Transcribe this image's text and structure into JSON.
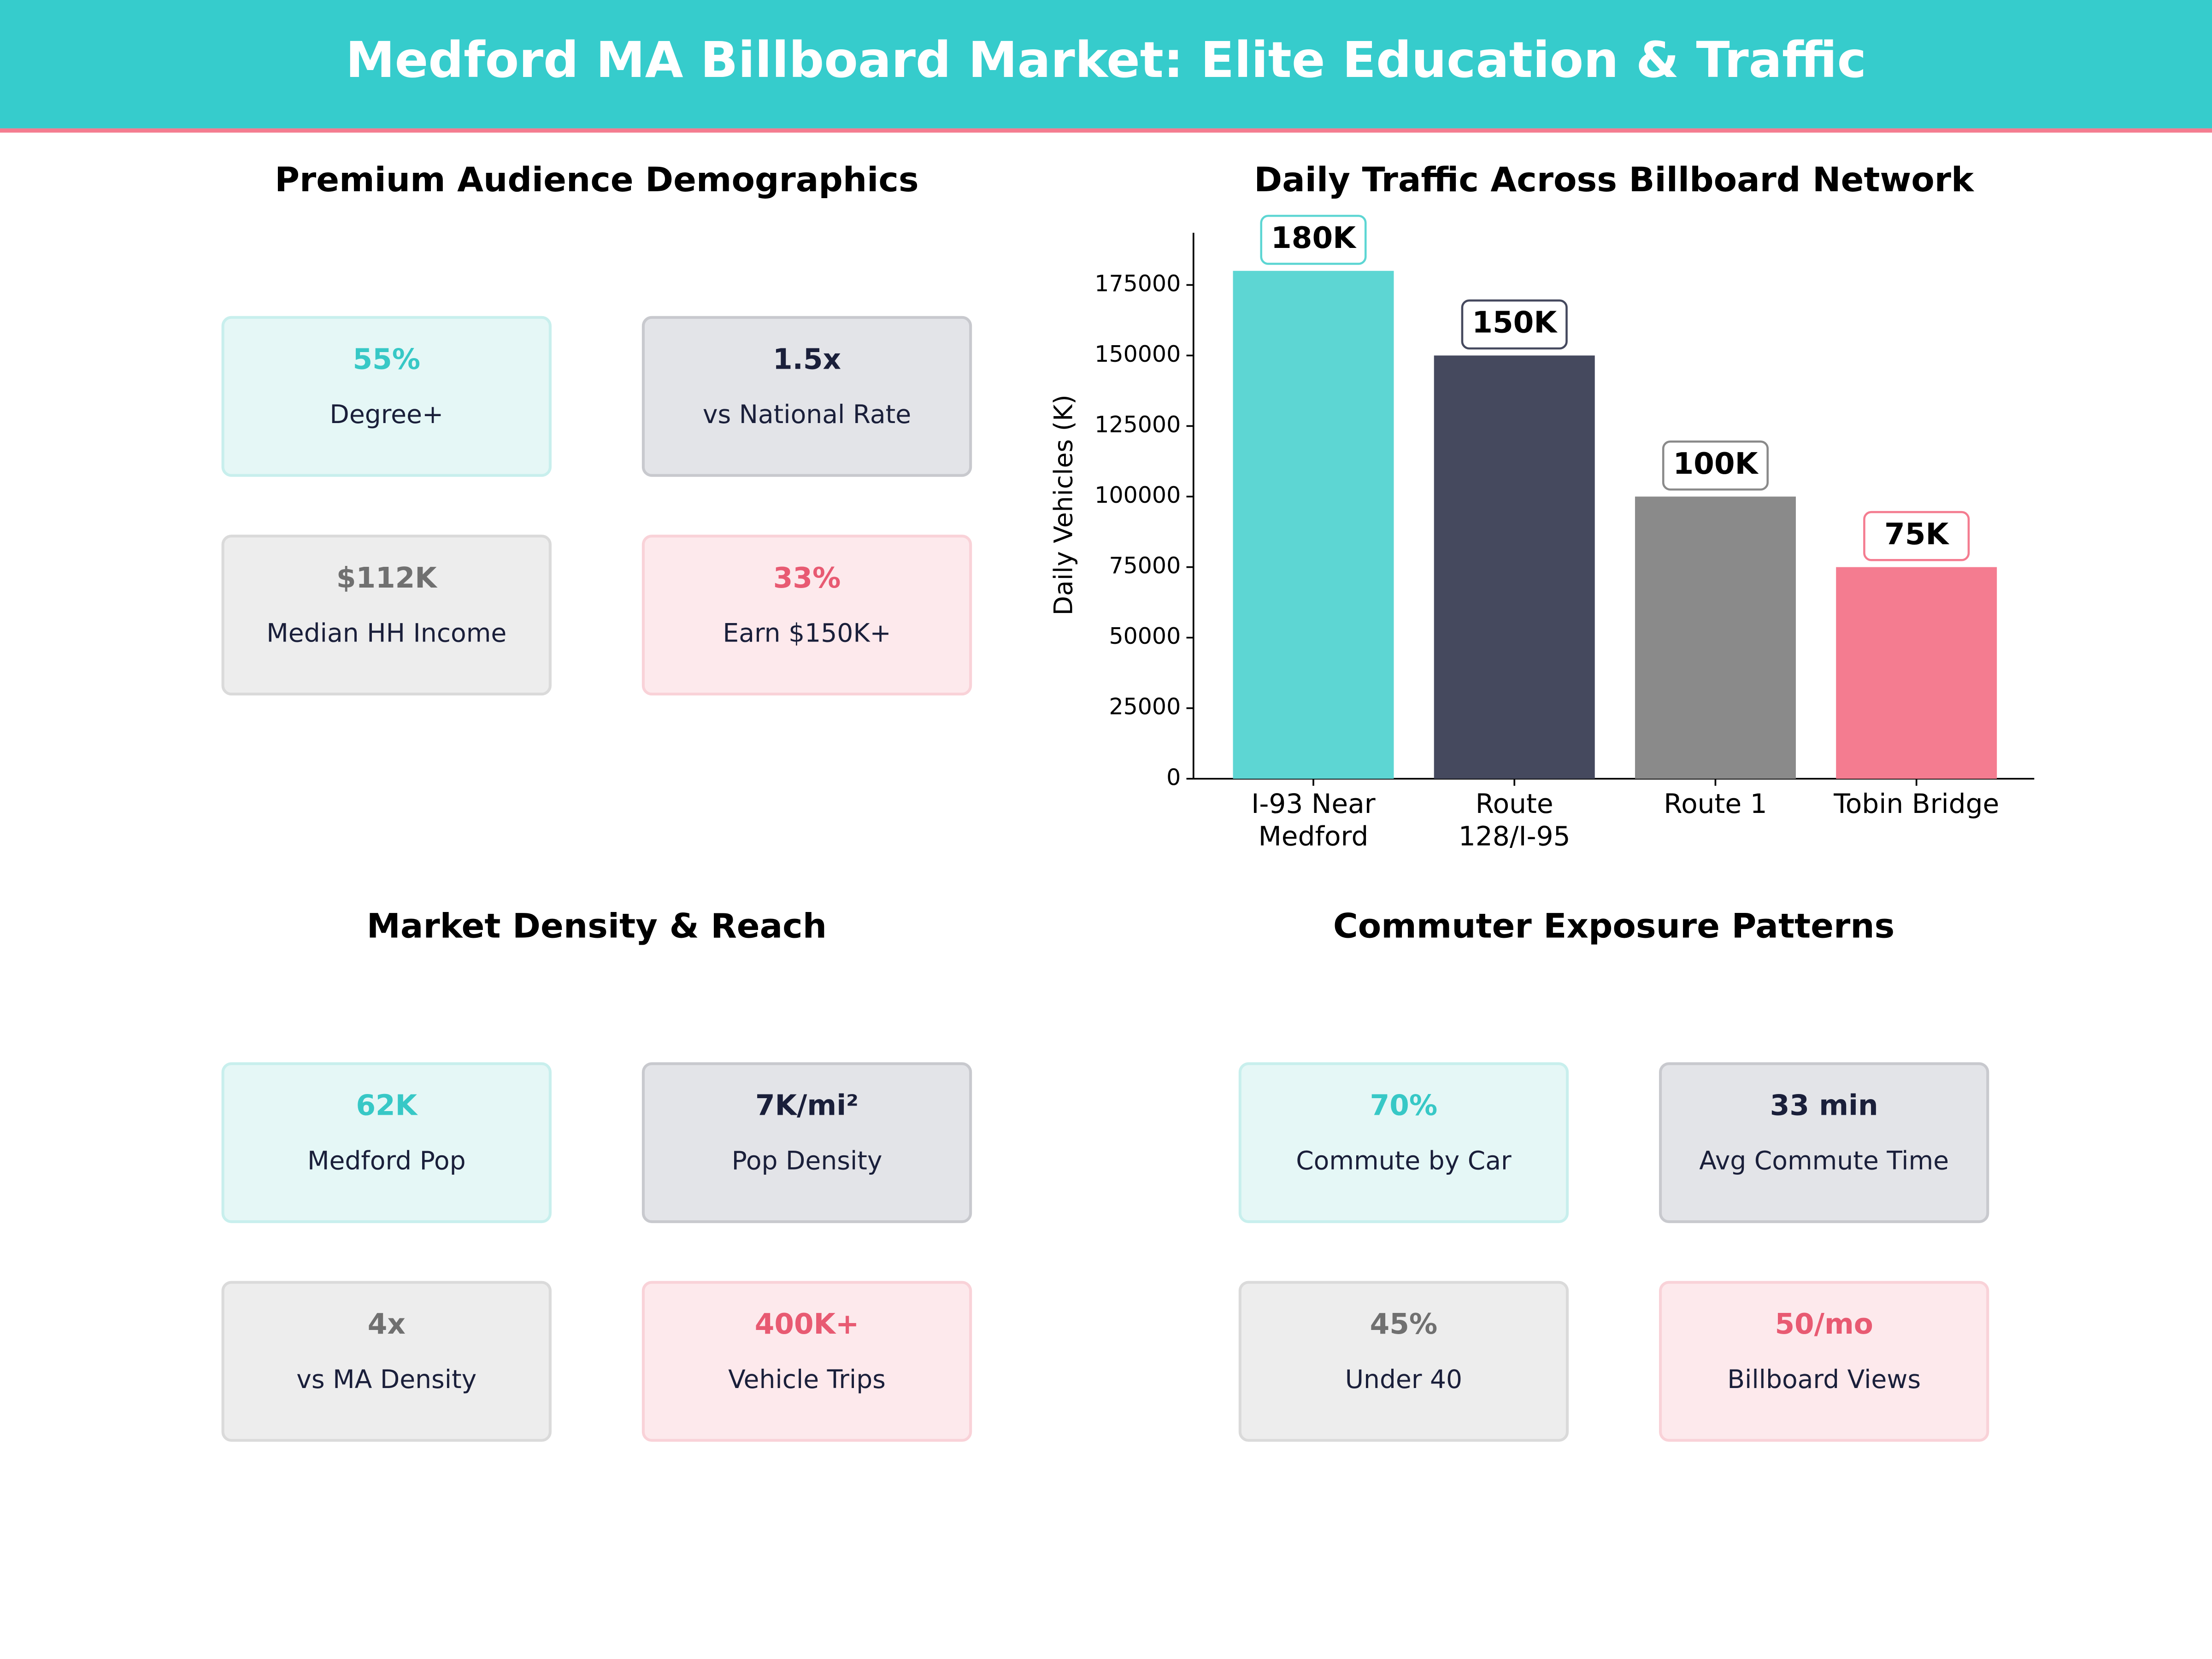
{
  "header": {
    "title": "Medford MA Billboard Market: Elite Education & Traffic"
  },
  "stat_panels": [
    {
      "title": "Premium Audience Demographics",
      "cards": [
        {
          "value": "55%",
          "label": "Degree+"
        },
        {
          "value": "1.5x",
          "label": "vs National Rate"
        },
        {
          "value": "$112K",
          "label": "Median HH Income"
        },
        {
          "value": "33%",
          "label": "Earn $150K+"
        }
      ]
    },
    {
      "title": "Market Density & Reach",
      "cards": [
        {
          "value": "62K",
          "label": "Medford Pop"
        },
        {
          "value": "7K/mi²",
          "label": "Pop Density"
        },
        {
          "value": "4x",
          "label": "vs MA Density"
        },
        {
          "value": "400K+",
          "label": "Vehicle Trips"
        }
      ]
    },
    {
      "title": "Commuter Exposure Patterns",
      "cards": [
        {
          "value": "70%",
          "label": "Commute by Car"
        },
        {
          "value": "33 min",
          "label": "Avg Commute Time"
        },
        {
          "value": "45%",
          "label": "Under 40"
        },
        {
          "value": "50/mo",
          "label": "Billboard Views"
        }
      ]
    }
  ],
  "chart_data": {
    "type": "bar",
    "title": "Daily Traffic Across Billboard Network",
    "ylabel": "Daily Vehicles (K)",
    "categories": [
      "I-93 Near\nMedford",
      "Route\n128/I-95",
      "Route 1",
      "Tobin Bridge"
    ],
    "values": [
      180000,
      150000,
      100000,
      75000
    ],
    "value_labels": [
      "180K",
      "150K",
      "100K",
      "75K"
    ],
    "colors": [
      "#5dd6d3",
      "#45495e",
      "#8a8a8a",
      "#f47c90"
    ],
    "ylim": [
      0,
      193500
    ],
    "yticks": [
      0,
      25000,
      50000,
      75000,
      100000,
      125000,
      150000,
      175000
    ]
  }
}
